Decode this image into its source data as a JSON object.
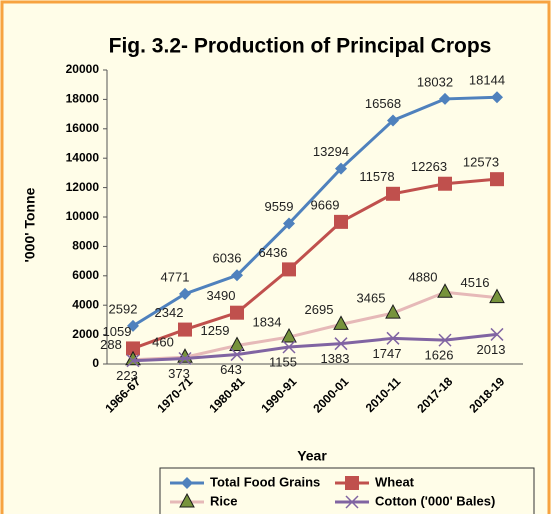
{
  "chart_data": {
    "type": "line",
    "title": "Fig. 3.2- Production of Principal Crops",
    "x_label": "Year",
    "y_label": "'000' Tonne",
    "categories": [
      "1966-67",
      "1970-71",
      "1980-81",
      "1990-91",
      "2000-01",
      "2010-11",
      "2017-18",
      "2018-19"
    ],
    "series": [
      {
        "name": "Total Food Grains",
        "color": "#4f81bd",
        "marker": "diamond",
        "marker_color": "#4f81bd",
        "values": [
          2592,
          4771,
          6036,
          9559,
          13294,
          16568,
          18032,
          18144
        ]
      },
      {
        "name": "Wheat",
        "color": "#c0504d",
        "marker": "square",
        "marker_color": "#c0504d",
        "values": [
          1059,
          2342,
          3490,
          6436,
          9669,
          11578,
          12263,
          12573
        ]
      },
      {
        "name": "Rice",
        "color": "#e6b9b8",
        "marker": "triangle",
        "marker_color": "#77933c",
        "values": [
          288,
          460,
          1259,
          1834,
          2695,
          3465,
          4880,
          4516
        ]
      },
      {
        "name": "Cotton ('000' Bales)",
        "color": "#8064a2",
        "marker": "x",
        "marker_color": "#8064a2",
        "values": [
          223,
          373,
          643,
          1155,
          1383,
          1747,
          1626,
          2013
        ]
      }
    ],
    "ylim": [
      0,
      20000
    ],
    "yticks": [
      0,
      2000,
      4000,
      6000,
      8000,
      10000,
      12000,
      14000,
      16000,
      18000,
      20000
    ],
    "grid": false,
    "legend": "bottom"
  }
}
